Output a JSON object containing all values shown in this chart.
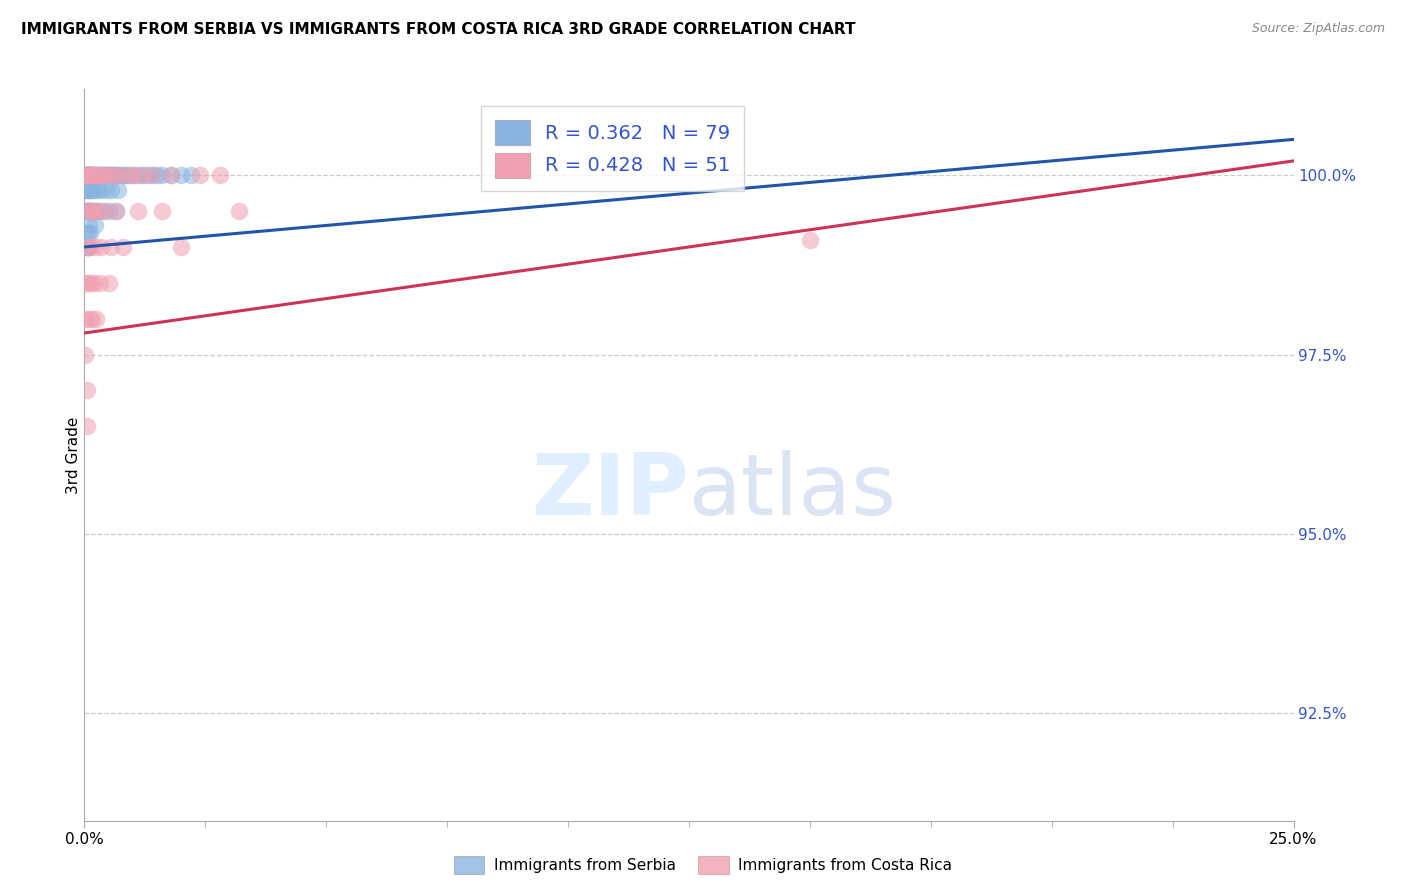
{
  "title": "IMMIGRANTS FROM SERBIA VS IMMIGRANTS FROM COSTA RICA 3RD GRADE CORRELATION CHART",
  "source": "Source: ZipAtlas.com",
  "ylabel": "3rd Grade",
  "ytick_values": [
    92.5,
    95.0,
    97.5,
    100.0
  ],
  "xlim": [
    0.0,
    25.0
  ],
  "ylim": [
    91.0,
    101.2
  ],
  "serbia_color": "#8ab4e0",
  "costa_rica_color": "#f0a0b0",
  "serbia_R": 0.362,
  "serbia_N": 79,
  "costa_rica_R": 0.428,
  "costa_rica_N": 51,
  "serbia_line_color": "#2255aa",
  "costa_rica_line_color": "#cc3355",
  "legend_label_serbia": "Immigrants from Serbia",
  "legend_label_costa_rica": "Immigrants from Costa Rica",
  "serbia_x": [
    0.02,
    0.02,
    0.03,
    0.03,
    0.04,
    0.04,
    0.05,
    0.05,
    0.05,
    0.06,
    0.06,
    0.06,
    0.07,
    0.07,
    0.07,
    0.08,
    0.08,
    0.08,
    0.09,
    0.09,
    0.1,
    0.1,
    0.1,
    0.11,
    0.11,
    0.12,
    0.12,
    0.13,
    0.14,
    0.15,
    0.15,
    0.16,
    0.17,
    0.18,
    0.19,
    0.2,
    0.2,
    0.22,
    0.22,
    0.25,
    0.25,
    0.27,
    0.28,
    0.3,
    0.3,
    0.32,
    0.35,
    0.35,
    0.38,
    0.4,
    0.4,
    0.42,
    0.45,
    0.45,
    0.48,
    0.5,
    0.5,
    0.55,
    0.55,
    0.6,
    0.6,
    0.65,
    0.65,
    0.7,
    0.7,
    0.75,
    0.8,
    0.85,
    0.9,
    1.0,
    1.1,
    1.2,
    1.3,
    1.4,
    1.5,
    1.6,
    1.8,
    2.0,
    2.2
  ],
  "serbia_y": [
    100.0,
    99.8,
    100.0,
    99.5,
    100.0,
    99.2,
    100.0,
    99.8,
    99.0,
    100.0,
    99.5,
    99.0,
    100.0,
    99.5,
    99.0,
    100.0,
    99.8,
    99.2,
    100.0,
    99.5,
    100.0,
    99.8,
    99.3,
    100.0,
    99.5,
    100.0,
    99.2,
    99.8,
    100.0,
    100.0,
    99.5,
    100.0,
    99.8,
    100.0,
    99.5,
    100.0,
    99.8,
    100.0,
    99.3,
    100.0,
    99.5,
    100.0,
    99.8,
    100.0,
    99.5,
    100.0,
    100.0,
    99.8,
    100.0,
    100.0,
    99.5,
    100.0,
    100.0,
    99.8,
    100.0,
    100.0,
    99.5,
    100.0,
    99.8,
    100.0,
    100.0,
    100.0,
    99.5,
    100.0,
    99.8,
    100.0,
    100.0,
    100.0,
    100.0,
    100.0,
    100.0,
    100.0,
    100.0,
    100.0,
    100.0,
    100.0,
    100.0,
    100.0,
    100.0
  ],
  "costa_rica_x": [
    0.02,
    0.03,
    0.04,
    0.05,
    0.05,
    0.06,
    0.06,
    0.07,
    0.08,
    0.08,
    0.09,
    0.1,
    0.1,
    0.11,
    0.12,
    0.13,
    0.14,
    0.15,
    0.16,
    0.17,
    0.18,
    0.2,
    0.2,
    0.22,
    0.25,
    0.25,
    0.28,
    0.3,
    0.32,
    0.35,
    0.38,
    0.4,
    0.45,
    0.5,
    0.55,
    0.6,
    0.65,
    0.7,
    0.8,
    0.9,
    1.0,
    1.1,
    1.2,
    1.4,
    1.6,
    1.8,
    2.0,
    2.4,
    2.8,
    3.2,
    15.0
  ],
  "costa_rica_y": [
    97.5,
    98.5,
    98.0,
    100.0,
    97.0,
    100.0,
    96.5,
    99.0,
    100.0,
    98.5,
    99.5,
    100.0,
    98.0,
    99.0,
    100.0,
    99.5,
    98.5,
    100.0,
    98.0,
    99.5,
    100.0,
    100.0,
    98.5,
    99.0,
    100.0,
    98.0,
    99.5,
    100.0,
    98.5,
    99.0,
    100.0,
    99.5,
    100.0,
    98.5,
    99.0,
    100.0,
    99.5,
    100.0,
    99.0,
    100.0,
    100.0,
    99.5,
    100.0,
    100.0,
    99.5,
    100.0,
    99.0,
    100.0,
    100.0,
    99.5,
    99.1
  ],
  "serbia_line_x0": 0.0,
  "serbia_line_y0": 99.0,
  "serbia_line_x1": 25.0,
  "serbia_line_y1": 100.5,
  "costa_rica_line_x0": 0.0,
  "costa_rica_line_y0": 97.8,
  "costa_rica_line_x1": 25.0,
  "costa_rica_line_y1": 100.2
}
